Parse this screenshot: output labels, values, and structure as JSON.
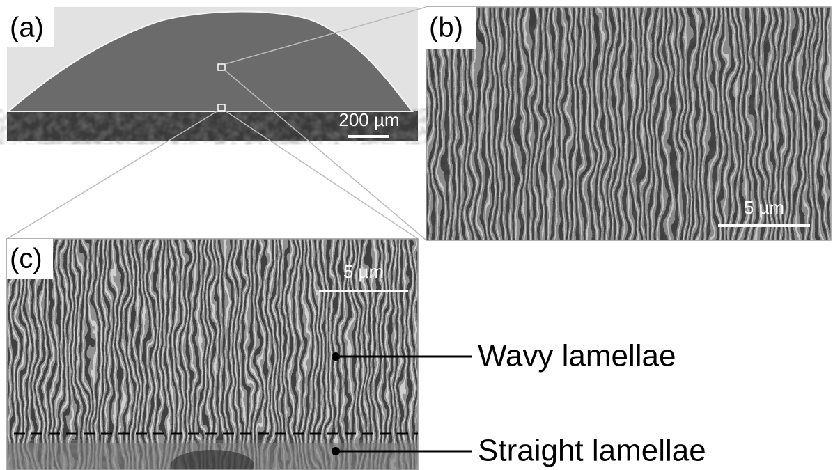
{
  "panels": [
    {
      "label": "(a)",
      "scale_bar": "200 µm"
    },
    {
      "label": "(b)",
      "scale_bar": "5 µm"
    },
    {
      "label": "(c)",
      "scale_bar": "5 µm"
    }
  ],
  "annotations": [
    "Wavy lamellae",
    "Straight lamellae"
  ]
}
